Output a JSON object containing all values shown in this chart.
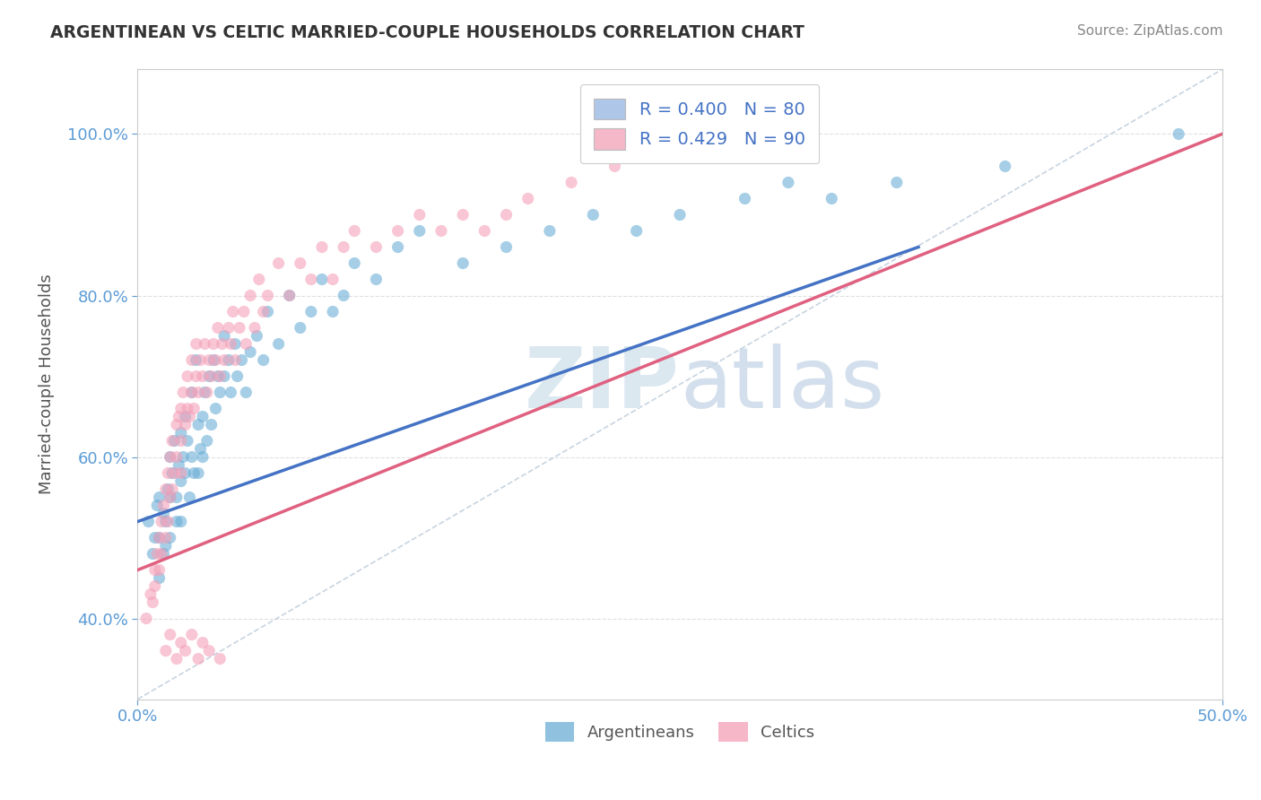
{
  "title": "ARGENTINEAN VS CELTIC MARRIED-COUPLE HOUSEHOLDS CORRELATION CHART",
  "source_text": "Source: ZipAtlas.com",
  "ylabel": "Married-couple Households",
  "xlim": [
    0.0,
    0.5
  ],
  "ylim": [
    0.3,
    1.08
  ],
  "legend_entries": [
    {
      "label": "R = 0.400   N = 80",
      "facecolor": "#aec6e8"
    },
    {
      "label": "R = 0.429   N = 90",
      "facecolor": "#f4b8c8"
    }
  ],
  "legend_labels_bottom": [
    "Argentineans",
    "Celtics"
  ],
  "blue_color": "#6baed6",
  "pink_color": "#f4a0b8",
  "blue_line_color": "#4472c4",
  "pink_line_color": "#e06080",
  "ref_line_color": "#c8d4e0",
  "watermark_color": "#dce8f0",
  "watermark_text": "ZIPatlas",
  "title_color": "#333333",
  "blue_scatter_x": [
    0.005,
    0.007,
    0.008,
    0.009,
    0.01,
    0.01,
    0.01,
    0.012,
    0.012,
    0.013,
    0.013,
    0.014,
    0.015,
    0.015,
    0.015,
    0.016,
    0.017,
    0.018,
    0.018,
    0.019,
    0.02,
    0.02,
    0.02,
    0.021,
    0.022,
    0.022,
    0.023,
    0.024,
    0.025,
    0.025,
    0.026,
    0.027,
    0.028,
    0.028,
    0.029,
    0.03,
    0.03,
    0.031,
    0.032,
    0.033,
    0.034,
    0.035,
    0.036,
    0.037,
    0.038,
    0.04,
    0.04,
    0.042,
    0.043,
    0.045,
    0.046,
    0.048,
    0.05,
    0.052,
    0.055,
    0.058,
    0.06,
    0.065,
    0.07,
    0.075,
    0.08,
    0.085,
    0.09,
    0.095,
    0.1,
    0.11,
    0.12,
    0.13,
    0.15,
    0.17,
    0.19,
    0.21,
    0.23,
    0.25,
    0.28,
    0.3,
    0.32,
    0.35,
    0.4,
    0.48
  ],
  "blue_scatter_y": [
    0.52,
    0.48,
    0.5,
    0.54,
    0.55,
    0.5,
    0.45,
    0.53,
    0.48,
    0.52,
    0.49,
    0.56,
    0.6,
    0.55,
    0.5,
    0.58,
    0.62,
    0.55,
    0.52,
    0.59,
    0.63,
    0.57,
    0.52,
    0.6,
    0.65,
    0.58,
    0.62,
    0.55,
    0.68,
    0.6,
    0.58,
    0.72,
    0.64,
    0.58,
    0.61,
    0.65,
    0.6,
    0.68,
    0.62,
    0.7,
    0.64,
    0.72,
    0.66,
    0.7,
    0.68,
    0.75,
    0.7,
    0.72,
    0.68,
    0.74,
    0.7,
    0.72,
    0.68,
    0.73,
    0.75,
    0.72,
    0.78,
    0.74,
    0.8,
    0.76,
    0.78,
    0.82,
    0.78,
    0.8,
    0.84,
    0.82,
    0.86,
    0.88,
    0.84,
    0.86,
    0.88,
    0.9,
    0.88,
    0.9,
    0.92,
    0.94,
    0.92,
    0.94,
    0.96,
    1.0
  ],
  "pink_scatter_x": [
    0.004,
    0.006,
    0.007,
    0.008,
    0.008,
    0.009,
    0.01,
    0.01,
    0.011,
    0.011,
    0.012,
    0.013,
    0.013,
    0.014,
    0.014,
    0.015,
    0.015,
    0.016,
    0.016,
    0.017,
    0.018,
    0.018,
    0.019,
    0.02,
    0.02,
    0.02,
    0.021,
    0.022,
    0.023,
    0.023,
    0.024,
    0.025,
    0.025,
    0.026,
    0.027,
    0.027,
    0.028,
    0.029,
    0.03,
    0.031,
    0.032,
    0.033,
    0.034,
    0.035,
    0.036,
    0.037,
    0.038,
    0.039,
    0.04,
    0.042,
    0.043,
    0.044,
    0.045,
    0.047,
    0.049,
    0.05,
    0.052,
    0.054,
    0.056,
    0.058,
    0.06,
    0.065,
    0.07,
    0.075,
    0.08,
    0.085,
    0.09,
    0.095,
    0.1,
    0.11,
    0.12,
    0.13,
    0.14,
    0.15,
    0.16,
    0.17,
    0.18,
    0.2,
    0.22,
    0.25,
    0.013,
    0.015,
    0.018,
    0.02,
    0.022,
    0.025,
    0.028,
    0.03,
    0.033,
    0.038
  ],
  "pink_scatter_y": [
    0.4,
    0.43,
    0.42,
    0.46,
    0.44,
    0.48,
    0.5,
    0.46,
    0.52,
    0.48,
    0.54,
    0.5,
    0.56,
    0.52,
    0.58,
    0.55,
    0.6,
    0.56,
    0.62,
    0.58,
    0.64,
    0.6,
    0.65,
    0.62,
    0.66,
    0.58,
    0.68,
    0.64,
    0.66,
    0.7,
    0.65,
    0.68,
    0.72,
    0.66,
    0.7,
    0.74,
    0.68,
    0.72,
    0.7,
    0.74,
    0.68,
    0.72,
    0.7,
    0.74,
    0.72,
    0.76,
    0.7,
    0.74,
    0.72,
    0.76,
    0.74,
    0.78,
    0.72,
    0.76,
    0.78,
    0.74,
    0.8,
    0.76,
    0.82,
    0.78,
    0.8,
    0.84,
    0.8,
    0.84,
    0.82,
    0.86,
    0.82,
    0.86,
    0.88,
    0.86,
    0.88,
    0.9,
    0.88,
    0.9,
    0.88,
    0.9,
    0.92,
    0.94,
    0.96,
    0.98,
    0.36,
    0.38,
    0.35,
    0.37,
    0.36,
    0.38,
    0.35,
    0.37,
    0.36,
    0.35
  ]
}
